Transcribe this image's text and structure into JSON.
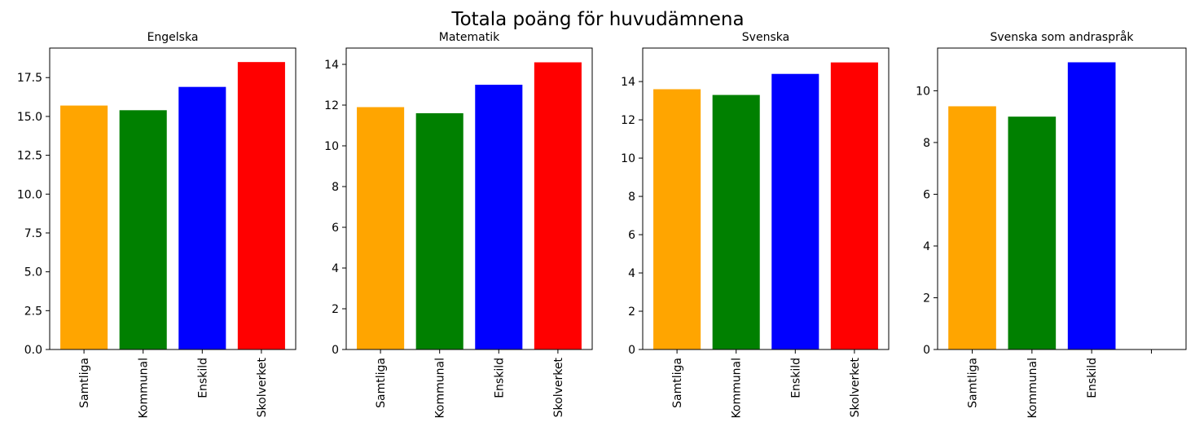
{
  "figure": {
    "title": "Totala poäng för huvudämnena"
  },
  "chart_data": [
    {
      "type": "bar",
      "title": "Engelska",
      "categories": [
        "Samtliga",
        "Kommunal",
        "Enskild",
        "Skolverket"
      ],
      "values": [
        15.7,
        15.4,
        16.9,
        18.5
      ],
      "colors": [
        "#ffa500",
        "#008000",
        "#0000ff",
        "#ff0000"
      ],
      "ylim": [
        0,
        19.4
      ],
      "yticks": [
        0,
        2.5,
        5,
        7.5,
        10,
        12.5,
        15,
        17.5
      ],
      "ytick_labels": [
        "0.0",
        "2.5",
        "5.0",
        "7.5",
        "10.0",
        "12.5",
        "15.0",
        "17.5"
      ]
    },
    {
      "type": "bar",
      "title": "Matematik",
      "categories": [
        "Samtliga",
        "Kommunal",
        "Enskild",
        "Skolverket"
      ],
      "values": [
        11.9,
        11.6,
        13.0,
        14.1
      ],
      "colors": [
        "#ffa500",
        "#008000",
        "#0000ff",
        "#ff0000"
      ],
      "ylim": [
        0,
        14.8
      ],
      "yticks": [
        0,
        2,
        4,
        6,
        8,
        10,
        12,
        14
      ],
      "ytick_labels": [
        "0",
        "2",
        "4",
        "6",
        "8",
        "10",
        "12",
        "14"
      ]
    },
    {
      "type": "bar",
      "title": "Svenska",
      "categories": [
        "Samtliga",
        "Kommunal",
        "Enskild",
        "Skolverket"
      ],
      "values": [
        13.6,
        13.3,
        14.4,
        15.0
      ],
      "colors": [
        "#ffa500",
        "#008000",
        "#0000ff",
        "#ff0000"
      ],
      "ylim": [
        0,
        15.75
      ],
      "yticks": [
        0,
        2,
        4,
        6,
        8,
        10,
        12,
        14
      ],
      "ytick_labels": [
        "0",
        "2",
        "4",
        "6",
        "8",
        "10",
        "12",
        "14"
      ]
    },
    {
      "type": "bar",
      "title": "Svenska som andraspråk",
      "categories": [
        "Samtliga",
        "Kommunal",
        "Enskild",
        ""
      ],
      "values": [
        9.4,
        9.0,
        11.1,
        null
      ],
      "colors": [
        "#ffa500",
        "#008000",
        "#0000ff",
        "#ff0000"
      ],
      "ylim": [
        0,
        11.65
      ],
      "yticks": [
        0,
        2,
        4,
        6,
        8,
        10
      ],
      "ytick_labels": [
        "0",
        "2",
        "4",
        "6",
        "8",
        "10"
      ]
    }
  ]
}
